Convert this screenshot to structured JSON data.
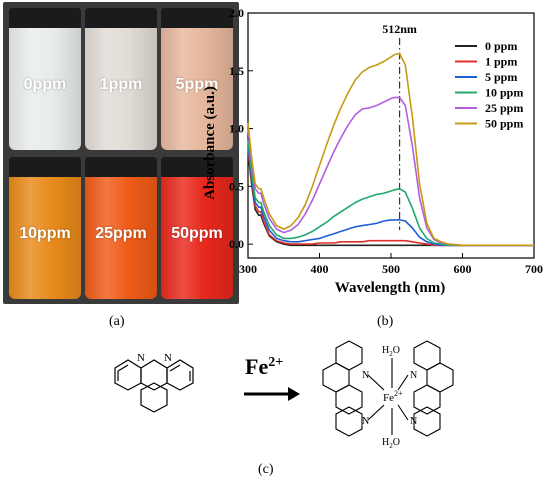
{
  "photo": {
    "vials": [
      {
        "label": "0ppm",
        "color": "#e9ecec"
      },
      {
        "label": "1ppm",
        "color": "#e2dcd6"
      },
      {
        "label": "5ppm",
        "color": "#e5b79c"
      },
      {
        "label": "10ppm",
        "color": "#e88a1a"
      },
      {
        "label": "25ppm",
        "color": "#ef5b17"
      },
      {
        "label": "50ppm",
        "color": "#e8281c"
      }
    ]
  },
  "panel_labels": {
    "a": "(a)",
    "b": "(b)",
    "c": "(c)"
  },
  "chart_data": {
    "type": "line",
    "xlabel": "Wavelength (nm)",
    "ylabel": "Absorbance (a.u.)",
    "xlim": [
      300,
      700
    ],
    "ylim": [
      -0.12,
      2.0
    ],
    "xticks": [
      300,
      400,
      500,
      600,
      700
    ],
    "yticks": [
      0.0,
      0.5,
      1.0,
      1.5,
      2.0
    ],
    "grid": false,
    "legend": "top-right",
    "annotation": {
      "text": "512nm",
      "x": 512
    },
    "x": [
      300,
      305,
      310,
      315,
      318,
      322,
      330,
      340,
      350,
      360,
      370,
      380,
      390,
      400,
      410,
      420,
      430,
      440,
      450,
      460,
      470,
      480,
      490,
      500,
      505,
      512,
      520,
      530,
      540,
      550,
      560,
      570,
      580,
      600,
      650,
      700
    ],
    "series": [
      {
        "name": "0 ppm",
        "color": "#222222",
        "values": [
          0.8,
          0.52,
          0.3,
          0.25,
          0.25,
          0.18,
          0.07,
          0.02,
          0.0,
          -0.01,
          -0.01,
          -0.01,
          -0.01,
          -0.01,
          -0.01,
          -0.01,
          -0.01,
          -0.01,
          -0.01,
          -0.01,
          -0.01,
          -0.01,
          -0.01,
          -0.01,
          -0.01,
          -0.01,
          -0.01,
          -0.01,
          -0.01,
          -0.01,
          -0.01,
          -0.01,
          -0.01,
          -0.01,
          -0.01,
          -0.01
        ]
      },
      {
        "name": "1 ppm",
        "color": "#e0302a",
        "values": [
          0.82,
          0.55,
          0.33,
          0.28,
          0.28,
          0.2,
          0.08,
          0.03,
          0.01,
          0.0,
          0.0,
          0.0,
          0.0,
          0.01,
          0.01,
          0.01,
          0.02,
          0.02,
          0.02,
          0.02,
          0.03,
          0.03,
          0.03,
          0.03,
          0.03,
          0.03,
          0.03,
          0.02,
          0.01,
          0.0,
          -0.01,
          -0.01,
          -0.01,
          -0.01,
          -0.01,
          -0.01
        ]
      },
      {
        "name": "5 ppm",
        "color": "#1f5fd6",
        "values": [
          0.85,
          0.58,
          0.36,
          0.32,
          0.32,
          0.24,
          0.12,
          0.05,
          0.03,
          0.02,
          0.02,
          0.03,
          0.04,
          0.05,
          0.07,
          0.09,
          0.11,
          0.13,
          0.15,
          0.16,
          0.17,
          0.18,
          0.2,
          0.21,
          0.21,
          0.21,
          0.2,
          0.14,
          0.06,
          0.02,
          0.0,
          -0.01,
          -0.01,
          -0.01,
          -0.01,
          -0.01
        ]
      },
      {
        "name": "10 ppm",
        "color": "#21a86a",
        "values": [
          0.9,
          0.62,
          0.4,
          0.36,
          0.36,
          0.28,
          0.16,
          0.08,
          0.05,
          0.05,
          0.06,
          0.08,
          0.11,
          0.15,
          0.19,
          0.24,
          0.28,
          0.32,
          0.36,
          0.39,
          0.41,
          0.43,
          0.44,
          0.46,
          0.47,
          0.48,
          0.45,
          0.31,
          0.14,
          0.05,
          0.01,
          0.0,
          -0.01,
          -0.01,
          -0.01,
          -0.01
        ]
      },
      {
        "name": "25 ppm",
        "color": "#b15ee0",
        "values": [
          1.0,
          0.7,
          0.48,
          0.44,
          0.44,
          0.35,
          0.22,
          0.13,
          0.1,
          0.12,
          0.17,
          0.26,
          0.38,
          0.52,
          0.66,
          0.8,
          0.92,
          1.03,
          1.12,
          1.17,
          1.18,
          1.2,
          1.23,
          1.26,
          1.27,
          1.27,
          1.2,
          0.85,
          0.4,
          0.14,
          0.04,
          0.01,
          0.0,
          -0.01,
          -0.01,
          -0.01
        ]
      },
      {
        "name": "50 ppm",
        "color": "#c69a12",
        "values": [
          1.05,
          0.75,
          0.52,
          0.48,
          0.48,
          0.4,
          0.26,
          0.16,
          0.13,
          0.16,
          0.23,
          0.34,
          0.5,
          0.68,
          0.86,
          1.03,
          1.18,
          1.31,
          1.42,
          1.49,
          1.53,
          1.55,
          1.58,
          1.62,
          1.64,
          1.65,
          1.55,
          1.1,
          0.52,
          0.18,
          0.05,
          0.02,
          0.0,
          -0.01,
          -0.01,
          -0.01
        ]
      }
    ]
  },
  "scheme": {
    "reagent": "Fe",
    "reagent_charge": "2+",
    "center": "Fe",
    "center_charge": "2+",
    "water": "H",
    "water_sub": "2",
    "water_o": "O",
    "nitrogen": "N"
  }
}
